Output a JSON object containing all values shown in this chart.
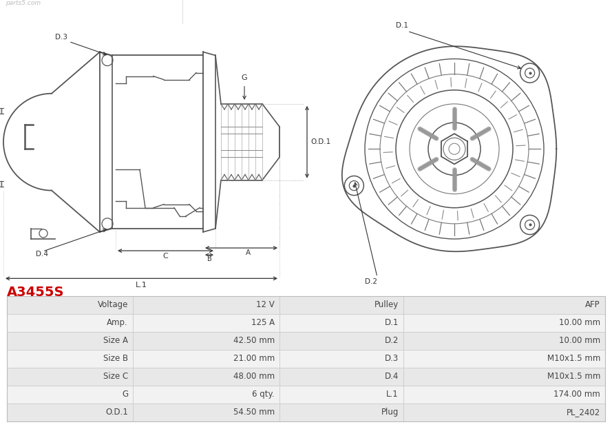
{
  "title": "A3455S",
  "title_color": "#cc0000",
  "bg_color": "#ffffff",
  "line_color": "#555555",
  "dim_color": "#333333",
  "table_rows": [
    [
      "Voltage",
      "12 V",
      "Pulley",
      "AFP"
    ],
    [
      "Amp.",
      "125 A",
      "D.1",
      "10.00 mm"
    ],
    [
      "Size A",
      "42.50 mm",
      "D.2",
      "10.00 mm"
    ],
    [
      "Size B",
      "21.00 mm",
      "D.3",
      "M10x1.5 mm"
    ],
    [
      "Size C",
      "48.00 mm",
      "D.4",
      "M10x1.5 mm"
    ],
    [
      "G",
      "6 qty.",
      "L.1",
      "174.00 mm"
    ],
    [
      "O.D.1",
      "54.50 mm",
      "Plug",
      "PL_2402"
    ]
  ],
  "row_bg_odd": "#e8e8e8",
  "row_bg_even": "#f2f2f2",
  "text_color": "#444444",
  "font_size": 8.5,
  "watermark": "parts5.com"
}
